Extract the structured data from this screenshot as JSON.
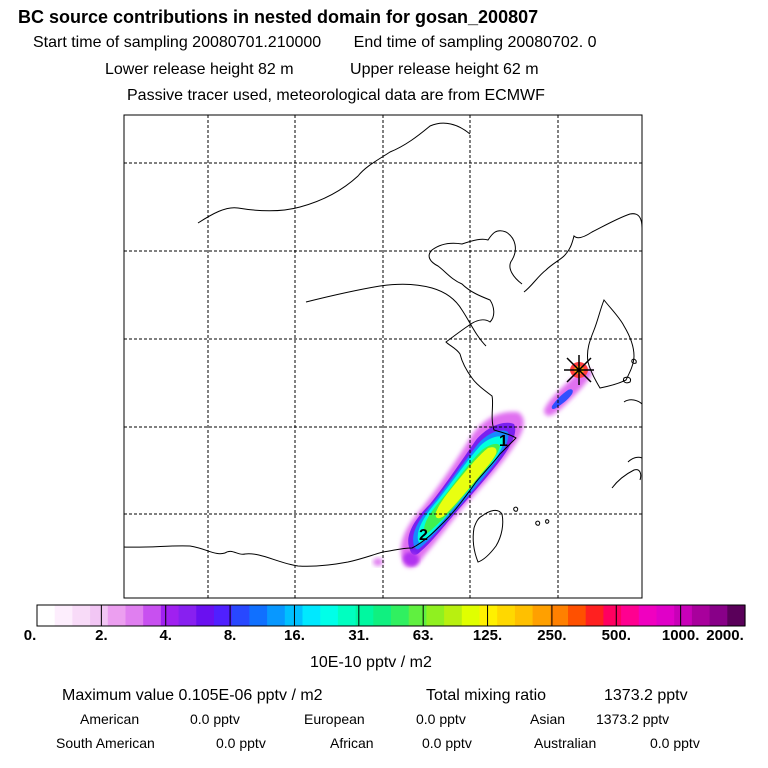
{
  "header": {
    "title": "BC  source contributions in nested domain for gosan_200807",
    "start_label": "Start time of sampling 20080701.210000",
    "end_label": "End time of sampling 20080702.     0",
    "lower_label": "Lower release height   82 m",
    "upper_label": "Upper release height   62 m",
    "note": "Passive tracer used, meteorological data are from ECMWF"
  },
  "chart_data": {
    "type": "heatmap",
    "title": "BC  source contributions in nested domain for gosan_200807",
    "colorbar": {
      "ticks": [
        "0.",
        "2.",
        "4.",
        "8.",
        "16.",
        "31.",
        "63.",
        "125.",
        "250.",
        "500.",
        "1000.",
        "2000."
      ],
      "units": "10E-10 pptv / m2",
      "colors": [
        "#ffffff",
        "#fdeefd",
        "#f8dbf8",
        "#f2c6f4",
        "#ec9ff0",
        "#e07ff0",
        "#c850f0",
        "#a020f0",
        "#8820f0",
        "#6a10f0",
        "#5020ff",
        "#2848ff",
        "#1070ff",
        "#0898ff",
        "#00c0ff",
        "#00e8ff",
        "#00ffe8",
        "#00ffc0",
        "#00f8a0",
        "#10f080",
        "#30f060",
        "#60f040",
        "#90f020",
        "#b8f010",
        "#e0ff00",
        "#fff000",
        "#ffd800",
        "#ffc000",
        "#ffa000",
        "#ff8000",
        "#ff5000",
        "#ff2020",
        "#ff0060",
        "#ff0090",
        "#f000c0",
        "#e000c8",
        "#c800b8",
        "#a8009c",
        "#880088",
        "#5a005a"
      ]
    },
    "plume_labels": [
      "1",
      "2"
    ],
    "receptor": "gosan"
  },
  "stats": {
    "max_label": "Maximum value  0.105E-06 pptv / m2",
    "total_label": "Total mixing ratio",
    "total_value": "1373.2 pptv",
    "american_label": "American",
    "american_value": "0.0 pptv",
    "european_label": "European",
    "european_value": "0.0 pptv",
    "asian_label": "Asian",
    "asian_value": "1373.2 pptv",
    "south_american_label": "South American",
    "south_american_value": "0.0 pptv",
    "african_label": "African",
    "african_value": "0.0 pptv",
    "australian_label": "Australian",
    "australian_value": "0.0 pptv"
  }
}
